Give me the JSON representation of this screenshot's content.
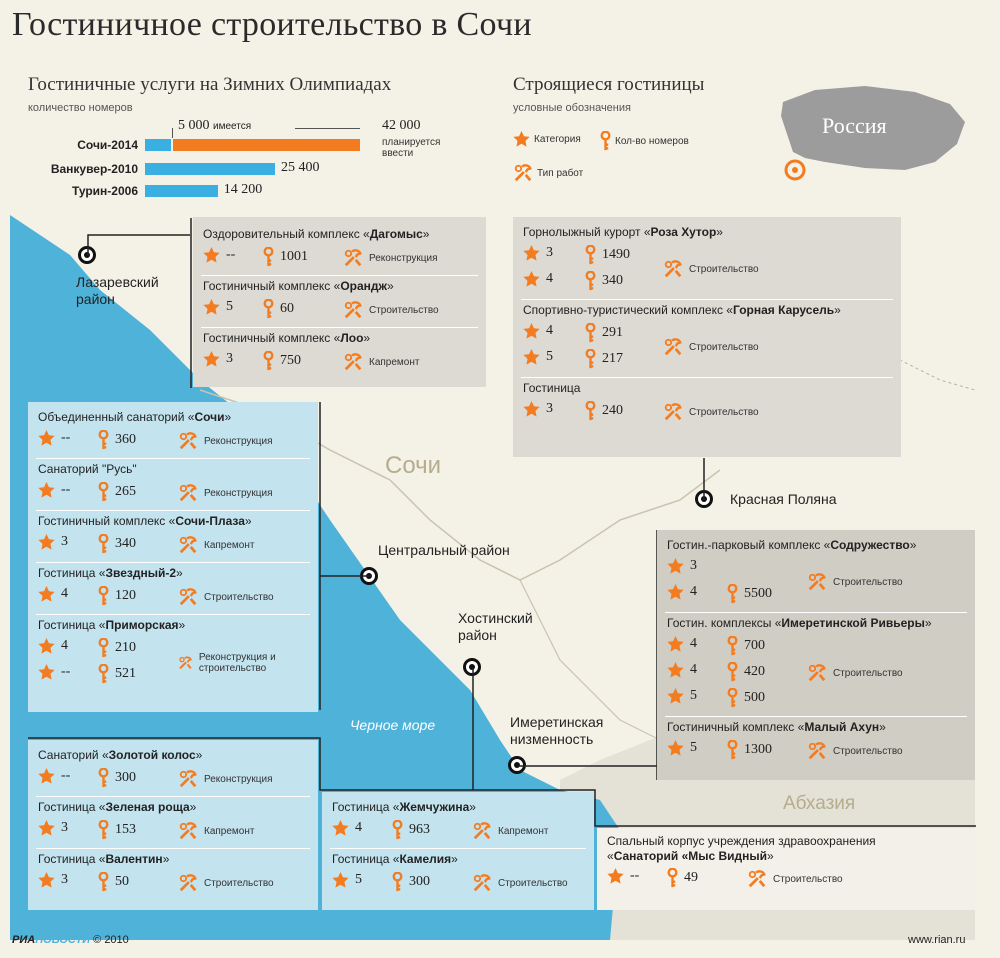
{
  "title": "Гостиничное строительство в Сочи",
  "olympics": {
    "title": "Гостиничные услуги на Зимних Олимпиадах",
    "subtitle": "количество номеров",
    "items": [
      {
        "city": "Сочи-2014",
        "existing_label": "5 000",
        "existing_word": "имеется",
        "planned_label": "42 000",
        "planned_note": "планируется ввести",
        "existing": 5000,
        "planned": 42000
      },
      {
        "city": "Ванкувер-2010",
        "value_label": "25 400",
        "value": 25400
      },
      {
        "city": "Турин-2006",
        "value_label": "14 200",
        "value": 14200
      }
    ],
    "colors": {
      "existing": "#3ab0e2",
      "planned": "#f47c20"
    }
  },
  "legend": {
    "title": "Строящиеся гостиницы",
    "subtitle": "условные обозначения",
    "category": "Категория",
    "rooms": "Кол-во номеров",
    "work": "Тип работ"
  },
  "inset": {
    "label": "Россия"
  },
  "map_labels": {
    "sochi": "Сочи",
    "sea": "Черное море",
    "abkhazia": "Абхазия",
    "lazarevsky": "Лазаревский район",
    "central": "Центральный район",
    "khostinsky": "Хостинский район",
    "krasnaya": "Красная Поляна",
    "imereti": "Имеретинская низменность"
  },
  "groups": {
    "lazarevsky": [
      {
        "prefix": "Оздоровительный комплекс «",
        "name": "Дагомыс",
        "suffix": "»",
        "rows": [
          {
            "cat": "--",
            "rooms": "1001"
          }
        ],
        "work": "Реконструкция"
      },
      {
        "prefix": "Гостиничный комплекс «",
        "name": "Орандж",
        "suffix": "»",
        "rows": [
          {
            "cat": "5",
            "rooms": "60"
          }
        ],
        "work": "Строительство"
      },
      {
        "prefix": "Гостиничный комплекс «",
        "name": "Лоо",
        "suffix": "»",
        "rows": [
          {
            "cat": "3",
            "rooms": "750"
          }
        ],
        "work": "Капремонт"
      }
    ],
    "krasnaya": [
      {
        "prefix": "Горнолыжный курорт «",
        "name": "Роза Хутор",
        "suffix": "»",
        "rows": [
          {
            "cat": "3",
            "rooms": "1490"
          },
          {
            "cat": "4",
            "rooms": "340"
          }
        ],
        "work": "Строительство"
      },
      {
        "prefix": "Спортивно-туристический комплекс «",
        "name": "Горная Карусель",
        "suffix": "»",
        "rows": [
          {
            "cat": "4",
            "rooms": "291"
          },
          {
            "cat": "5",
            "rooms": "217"
          }
        ],
        "work": "Строительство"
      },
      {
        "prefix": "Гостиница",
        "name": "",
        "suffix": "",
        "rows": [
          {
            "cat": "3",
            "rooms": "240"
          }
        ],
        "work": "Строительство"
      }
    ],
    "central": [
      {
        "prefix": "Объединенный санаторий «",
        "name": "Сочи",
        "suffix": "»",
        "rows": [
          {
            "cat": "--",
            "rooms": "360"
          }
        ],
        "work": "Реконструкция"
      },
      {
        "prefix": "Санаторий \"Русь\"",
        "name": "",
        "suffix": "",
        "rows": [
          {
            "cat": "--",
            "rooms": "265"
          }
        ],
        "work": "Реконструкция"
      },
      {
        "prefix": "Гостиничный комплекс «",
        "name": "Сочи-Плаза",
        "suffix": "»",
        "rows": [
          {
            "cat": "3",
            "rooms": "340"
          }
        ],
        "work": "Капремонт"
      },
      {
        "prefix": "Гостиница «",
        "name": "Звездный-2",
        "suffix": "»",
        "rows": [
          {
            "cat": "4",
            "rooms": "120"
          }
        ],
        "work": "Строительство"
      },
      {
        "prefix": "Гостиница «",
        "name": "Приморская",
        "suffix": "»",
        "rows": [
          {
            "cat": "4",
            "rooms": "210"
          },
          {
            "cat": "--",
            "rooms": "521"
          }
        ],
        "work": "Реконструкция и строительство"
      }
    ],
    "khosta_left": [
      {
        "prefix": "Санаторий «",
        "name": "Золотой колос",
        "suffix": "»",
        "rows": [
          {
            "cat": "--",
            "rooms": "300"
          }
        ],
        "work": "Реконструкция"
      },
      {
        "prefix": "Гостиница «",
        "name": "Зеленая роща",
        "suffix": "»",
        "rows": [
          {
            "cat": "3",
            "rooms": "153"
          }
        ],
        "work": "Капремонт"
      },
      {
        "prefix": "Гостиница «",
        "name": "Валентин",
        "suffix": "»",
        "rows": [
          {
            "cat": "3",
            "rooms": "50"
          }
        ],
        "work": "Строительство"
      }
    ],
    "khosta_right": [
      {
        "prefix": "Гостиница «",
        "name": "Жемчужина",
        "suffix": "»",
        "rows": [
          {
            "cat": "4",
            "rooms": "963"
          }
        ],
        "work": "Капремонт"
      },
      {
        "prefix": "Гостиница «",
        "name": "Камелия",
        "suffix": "»",
        "rows": [
          {
            "cat": "5",
            "rooms": "300"
          }
        ],
        "work": "Строительство"
      }
    ],
    "imereti": [
      {
        "prefix": "Гостин.-парковый комплекс «",
        "name": "Содружество",
        "suffix": "»",
        "rows": [
          {
            "cat": "3",
            "rooms": ""
          },
          {
            "cat": "4",
            "rooms": "5500"
          }
        ],
        "work": "Строительство"
      },
      {
        "prefix": "Гостин. комплексы «",
        "name": "Имеретинской Ривьеры",
        "suffix": "»",
        "rows": [
          {
            "cat": "4",
            "rooms": "700"
          },
          {
            "cat": "4",
            "rooms": "420"
          },
          {
            "cat": "5",
            "rooms": "500"
          }
        ],
        "work": "Строительство"
      },
      {
        "prefix": "Гостиничный комплекс «",
        "name": "Малый Ахун",
        "suffix": "»",
        "rows": [
          {
            "cat": "5",
            "rooms": "1300"
          }
        ],
        "work": "Строительство"
      }
    ],
    "mys": [
      {
        "prefix": "Спальный корпус учреждения здравоохранения «",
        "name": "Санаторий «Мыс Видный",
        "suffix": "»",
        "rows": [
          {
            "cat": "--",
            "rooms": "49"
          }
        ],
        "work": "Строительство"
      }
    ]
  },
  "footer": {
    "brand_a": "РИА",
    "brand_b": "НОВОСТИ",
    "copyright": "© 2010",
    "url": "www.rian.ru"
  }
}
